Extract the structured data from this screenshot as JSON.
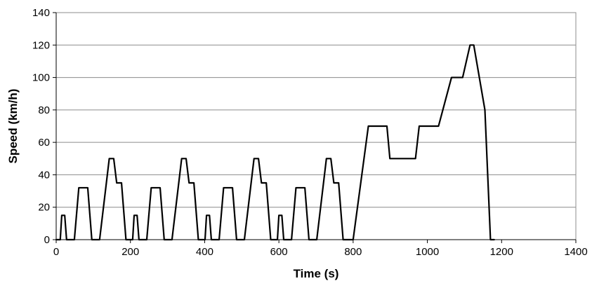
{
  "chart_data": {
    "type": "line",
    "title": "",
    "xlabel": "Time (s)",
    "ylabel": "Speed (km/h)",
    "xlim": [
      0,
      1400
    ],
    "ylim": [
      0,
      140
    ],
    "xticks": [
      0,
      200,
      400,
      600,
      800,
      1000,
      1200,
      1400
    ],
    "yticks": [
      0,
      20,
      40,
      60,
      80,
      100,
      120,
      140
    ],
    "grid": "horizontal",
    "legend": "none",
    "line_color": "#000000",
    "series": [
      {
        "points": [
          [
            0,
            0
          ],
          [
            11,
            0
          ],
          [
            15,
            15
          ],
          [
            23,
            15
          ],
          [
            28,
            0
          ],
          [
            49,
            0
          ],
          [
            61,
            32
          ],
          [
            85,
            32
          ],
          [
            96,
            0
          ],
          [
            117,
            0
          ],
          [
            143,
            50
          ],
          [
            155,
            50
          ],
          [
            163,
            35
          ],
          [
            176,
            35
          ],
          [
            188,
            0
          ],
          [
            206,
            0
          ],
          [
            210,
            15
          ],
          [
            218,
            15
          ],
          [
            223,
            0
          ],
          [
            244,
            0
          ],
          [
            256,
            32
          ],
          [
            280,
            32
          ],
          [
            291,
            0
          ],
          [
            312,
            0
          ],
          [
            338,
            50
          ],
          [
            350,
            50
          ],
          [
            358,
            35
          ],
          [
            371,
            35
          ],
          [
            383,
            0
          ],
          [
            401,
            0
          ],
          [
            405,
            15
          ],
          [
            413,
            15
          ],
          [
            418,
            0
          ],
          [
            439,
            0
          ],
          [
            451,
            32
          ],
          [
            475,
            32
          ],
          [
            486,
            0
          ],
          [
            507,
            0
          ],
          [
            533,
            50
          ],
          [
            545,
            50
          ],
          [
            553,
            35
          ],
          [
            566,
            35
          ],
          [
            578,
            0
          ],
          [
            596,
            0
          ],
          [
            600,
            15
          ],
          [
            608,
            15
          ],
          [
            613,
            0
          ],
          [
            634,
            0
          ],
          [
            646,
            32
          ],
          [
            670,
            32
          ],
          [
            681,
            0
          ],
          [
            702,
            0
          ],
          [
            728,
            50
          ],
          [
            740,
            50
          ],
          [
            748,
            35
          ],
          [
            761,
            35
          ],
          [
            773,
            0
          ],
          [
            800,
            0
          ],
          [
            841,
            70
          ],
          [
            891,
            70
          ],
          [
            899,
            50
          ],
          [
            968,
            50
          ],
          [
            978,
            70
          ],
          [
            1030,
            70
          ],
          [
            1065,
            100
          ],
          [
            1095,
            100
          ],
          [
            1115,
            120
          ],
          [
            1125,
            120
          ],
          [
            1155,
            80
          ],
          [
            1170,
            0
          ],
          [
            1180,
            0
          ]
        ]
      }
    ]
  }
}
